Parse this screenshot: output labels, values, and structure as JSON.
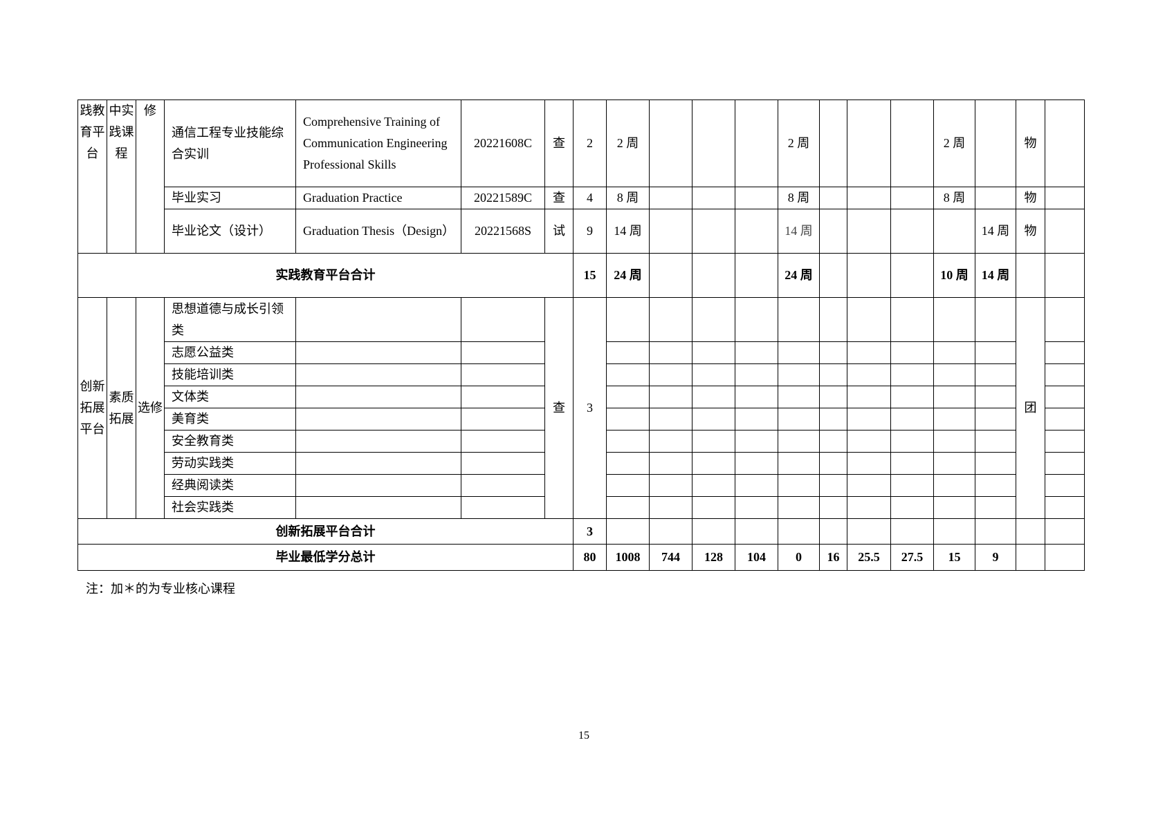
{
  "practice": {
    "platform": "践教育平台",
    "category": "中实践课程",
    "type": "修",
    "courses": [
      {
        "name": "通信工程专业技能综合实训",
        "english": "Comprehensive Training of Communication Engineering Professional Skills",
        "code": "20221608C",
        "assess": "查",
        "credits": "2",
        "weeks": [
          "2 周",
          "",
          "",
          "",
          "2 周",
          "",
          "",
          "",
          "2 周",
          "",
          "物",
          ""
        ]
      },
      {
        "name": "毕业实习",
        "english": "Graduation Practice",
        "code": "20221589C",
        "assess": "查",
        "credits": "4",
        "weeks": [
          "8 周",
          "",
          "",
          "",
          "8 周",
          "",
          "",
          "",
          "8 周",
          "",
          "物",
          ""
        ]
      },
      {
        "name": "毕业论文（设计）",
        "english": "Graduation Thesis（Design）",
        "code": "20221568S",
        "assess": "试",
        "credits": "9",
        "weeks": [
          "14 周",
          "",
          "",
          "",
          "14 周",
          "",
          "",
          "",
          "",
          "14 周",
          "物",
          ""
        ]
      }
    ],
    "subtotal": {
      "label": "实践教育平台合计",
      "credits": "15",
      "weeks": [
        "24 周",
        "",
        "",
        "",
        "24 周",
        "",
        "",
        "",
        "10 周",
        "14 周",
        "",
        ""
      ]
    }
  },
  "innovation": {
    "platform": "创新拓展平台",
    "category": "素质拓展",
    "type": "选修",
    "assess": "查",
    "credits": "3",
    "dept": "团",
    "items": [
      "思想道德与成长引领类",
      "志愿公益类",
      "技能培训类",
      "文体类",
      "美育类",
      "安全教育类",
      "劳动实践类",
      "经典阅读类",
      "社会实践类"
    ],
    "subtotal": {
      "label": "创新拓展平台合计",
      "credits": "3"
    }
  },
  "total": {
    "label": "毕业最低学分总计",
    "values": [
      "80",
      "1008",
      "744",
      "128",
      "104",
      "0",
      "16",
      "25.5",
      "27.5",
      "15",
      "9",
      "",
      ""
    ]
  },
  "footnote": "注：加＊的为专业核心课程",
  "page_number": "15"
}
